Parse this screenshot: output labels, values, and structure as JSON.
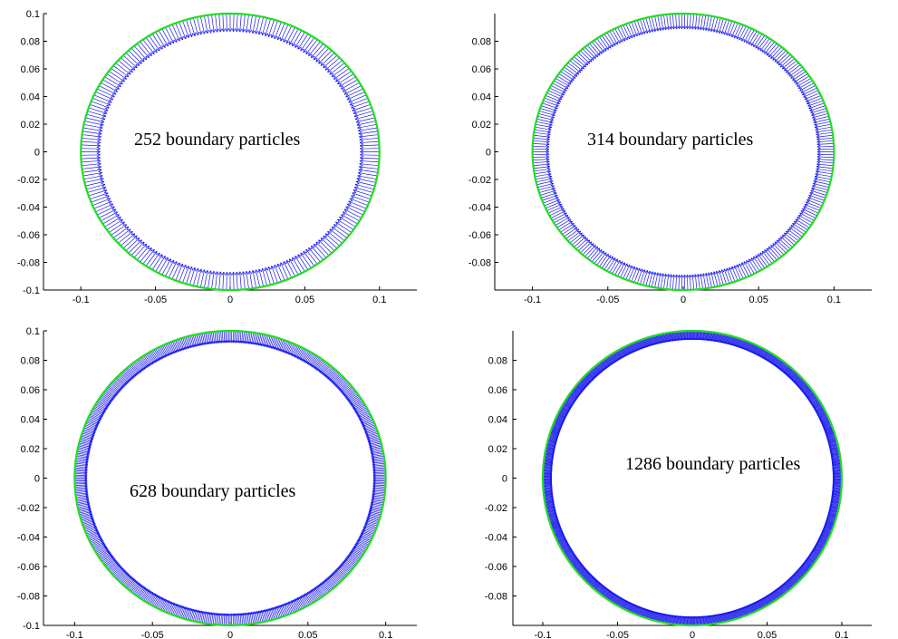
{
  "chart_data": [
    {
      "type": "scatter",
      "description_text": "",
      "annotation": "252 boundary particles",
      "particle_count": 252,
      "outer_radius": 0.1,
      "inner_radius": 0.087,
      "xlim": [
        -0.125,
        0.125
      ],
      "ylim": [
        -0.1,
        0.1
      ],
      "x_ticks": [
        -0.1,
        -0.05,
        0,
        0.05,
        0.1
      ],
      "x_tick_labels": [
        "-0.1",
        "-0.05",
        "0",
        "0.05",
        "0.1"
      ],
      "y_ticks": [
        0.1,
        0.08,
        0.06,
        0.04,
        0.02,
        0,
        -0.02,
        -0.04,
        -0.06,
        -0.08,
        -0.1
      ],
      "y_tick_labels": [
        "0.1",
        "0.08",
        "0.06",
        "0.04",
        "0.02",
        "0",
        "-0.02",
        "-0.04",
        "-0.06",
        "-0.08",
        "-0.1"
      ],
      "colors": {
        "boundary": "#22dd22",
        "normals": "#1a1aee"
      }
    },
    {
      "type": "scatter",
      "annotation": "314 boundary particles",
      "particle_count": 314,
      "outer_radius": 0.1,
      "inner_radius": 0.089,
      "xlim": [
        -0.125,
        0.125
      ],
      "ylim": [
        -0.1,
        0.1
      ],
      "x_ticks": [
        -0.1,
        -0.05,
        0,
        0.05,
        0.1
      ],
      "x_tick_labels": [
        "-0.1",
        "-0.05",
        "0",
        "0.05",
        "0.1"
      ],
      "y_ticks": [
        0.08,
        0.06,
        0.04,
        0.02,
        0,
        -0.02,
        -0.04,
        -0.06,
        -0.08
      ],
      "y_tick_labels": [
        "0.08",
        "0.06",
        "0.04",
        "0.02",
        "0",
        "-0.02",
        "-0.04",
        "-0.06",
        "-0.08"
      ],
      "colors": {
        "boundary": "#22dd22",
        "normals": "#1a1aee"
      }
    },
    {
      "type": "scatter",
      "annotation": "628 boundary particles",
      "particle_count": 628,
      "outer_radius": 0.1,
      "inner_radius": 0.092,
      "xlim": [
        -0.12,
        0.12
      ],
      "ylim": [
        -0.1,
        0.1
      ],
      "x_ticks": [
        -0.1,
        -0.05,
        0,
        0.05,
        0.1
      ],
      "x_tick_labels": [
        "-0.1",
        "-0.05",
        "0",
        "0.05",
        "0.1"
      ],
      "y_ticks": [
        0.1,
        0.08,
        0.06,
        0.04,
        0.02,
        0,
        -0.02,
        -0.04,
        -0.06,
        -0.08,
        -0.1
      ],
      "y_tick_labels": [
        "0.1",
        "0.08",
        "0.06",
        "0.04",
        "0.02",
        "0",
        "-0.02",
        "-0.04",
        "-0.06",
        "-0.08",
        "-0.1"
      ],
      "colors": {
        "boundary": "#22dd22",
        "normals": "#1a1aee"
      }
    },
    {
      "type": "scatter",
      "annotation": "1286 boundary particles",
      "particle_count": 1286,
      "outer_radius": 0.1,
      "inner_radius": 0.094,
      "xlim": [
        -0.12,
        0.12
      ],
      "ylim": [
        -0.1,
        0.1
      ],
      "x_ticks": [
        -0.1,
        -0.05,
        0,
        0.05,
        0.1
      ],
      "x_tick_labels": [
        "-0.1",
        "-0.05",
        "0",
        "0.05",
        "0.1"
      ],
      "y_ticks": [
        0.08,
        0.06,
        0.04,
        0.02,
        0,
        -0.02,
        -0.04,
        -0.06,
        -0.08
      ],
      "y_tick_labels": [
        "0.08",
        "0.06",
        "0.04",
        "0.02",
        "0",
        "-0.02",
        "-0.04",
        "-0.06",
        "-0.08"
      ],
      "colors": {
        "boundary": "#22dd22",
        "normals": "#1a1aee"
      }
    }
  ]
}
